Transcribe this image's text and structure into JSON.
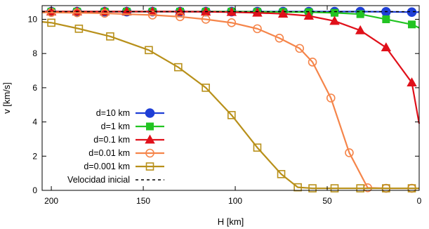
{
  "chart_data": {
    "type": "line",
    "xlabel": "H [km]",
    "ylabel": "v [km/s]",
    "xlim": [
      205,
      0
    ],
    "ylim": [
      0,
      10.8
    ],
    "x_reversed": true,
    "xticks": [
      200,
      150,
      100,
      50,
      0
    ],
    "yticks": [
      0,
      2,
      4,
      6,
      8,
      10
    ],
    "grid": false,
    "legend_position": "bottom-left",
    "series": [
      {
        "name": "d=10 km",
        "color": "#1f3fd6",
        "marker": "filled-circle",
        "x": [
          205,
          200,
          186,
          171,
          159,
          145,
          130,
          116,
          102,
          88,
          74,
          60,
          46,
          32,
          18,
          4,
          0
        ],
        "y": [
          10.45,
          10.45,
          10.45,
          10.45,
          10.45,
          10.45,
          10.45,
          10.45,
          10.45,
          10.45,
          10.45,
          10.45,
          10.45,
          10.45,
          10.44,
          10.42,
          10.42
        ],
        "markers_x": [
          200,
          186,
          171,
          159,
          145,
          130,
          116,
          102,
          88,
          74,
          60,
          46,
          32,
          18,
          4
        ]
      },
      {
        "name": "d=1 km",
        "color": "#22c422",
        "marker": "filled-square",
        "x": [
          205,
          200,
          186,
          171,
          159,
          145,
          130,
          116,
          102,
          88,
          74,
          60,
          46,
          32,
          18,
          4,
          0
        ],
        "y": [
          10.45,
          10.45,
          10.45,
          10.45,
          10.45,
          10.45,
          10.45,
          10.45,
          10.45,
          10.44,
          10.43,
          10.42,
          10.38,
          10.3,
          10.0,
          9.7,
          9.5
        ],
        "markers_x": [
          200,
          186,
          171,
          159,
          145,
          130,
          116,
          102,
          88,
          74,
          60,
          46,
          32,
          18,
          4
        ]
      },
      {
        "name": "d=0.1 km",
        "color": "#e0101a",
        "marker": "filled-triangle",
        "x": [
          205,
          200,
          186,
          171,
          159,
          145,
          130,
          116,
          102,
          88,
          74,
          60,
          46,
          32,
          18,
          4,
          0
        ],
        "y": [
          10.45,
          10.45,
          10.45,
          10.45,
          10.45,
          10.45,
          10.45,
          10.44,
          10.42,
          10.38,
          10.32,
          10.2,
          9.9,
          9.35,
          8.35,
          6.3,
          3.9
        ],
        "markers_x": [
          200,
          186,
          171,
          159,
          145,
          130,
          116,
          102,
          88,
          74,
          60,
          46,
          32,
          18,
          4
        ]
      },
      {
        "name": "d=0.01 km",
        "color": "#f5854a",
        "marker": "open-circle",
        "x": [
          205,
          200,
          186,
          171,
          159,
          145,
          130,
          116,
          102,
          88,
          76,
          65,
          58,
          48,
          38,
          28,
          18,
          4,
          0
        ],
        "y": [
          10.4,
          10.4,
          10.38,
          10.35,
          10.3,
          10.25,
          10.15,
          10.0,
          9.8,
          9.45,
          8.9,
          8.3,
          7.5,
          5.4,
          2.2,
          0.15,
          0.12,
          0.12,
          0.12
        ],
        "markers_x": [
          200,
          186,
          171,
          145,
          130,
          116,
          102,
          88,
          76,
          65,
          58,
          48,
          38,
          28,
          18,
          4
        ]
      },
      {
        "name": "d=0.001 km",
        "color": "#b8901a",
        "marker": "open-square",
        "x": [
          205,
          200,
          185,
          168,
          147,
          131,
          116,
          102,
          88,
          75,
          66,
          58,
          46,
          32,
          18,
          4,
          0
        ],
        "y": [
          9.85,
          9.8,
          9.45,
          9.0,
          8.2,
          7.2,
          6.0,
          4.4,
          2.5,
          0.95,
          0.18,
          0.12,
          0.12,
          0.12,
          0.12,
          0.12,
          0.12
        ],
        "markers_x": [
          200,
          185,
          168,
          147,
          131,
          116,
          102,
          88,
          75,
          66,
          58,
          46,
          32,
          18,
          4
        ]
      },
      {
        "name": "Velocidad inicial",
        "color": "#000000",
        "marker": "none",
        "dashed": true,
        "x": [
          205,
          0
        ],
        "y": [
          10.45,
          10.45
        ]
      }
    ]
  }
}
